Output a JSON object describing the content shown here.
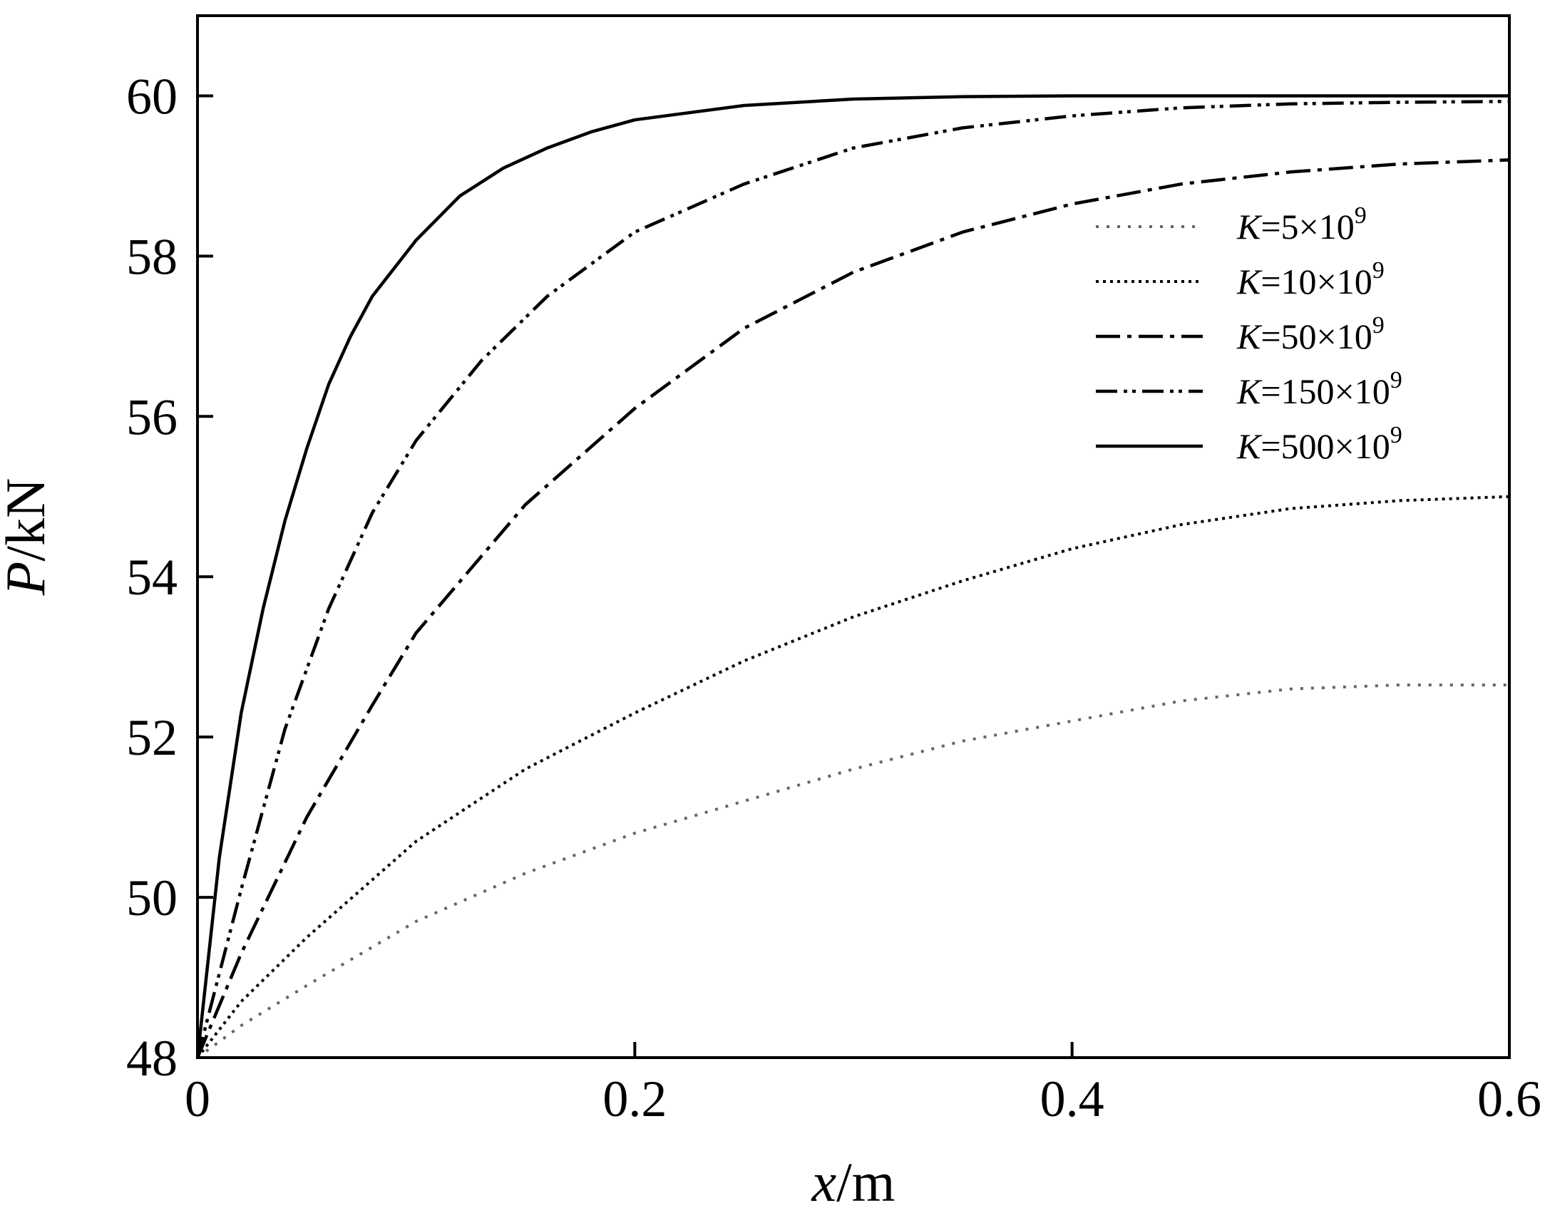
{
  "chart_data": {
    "type": "line",
    "xlabel": {
      "var": "x",
      "unit": "/m"
    },
    "ylabel": {
      "var": "P",
      "unit": "/kN"
    },
    "xlim": [
      0,
      0.6
    ],
    "ylim": [
      48,
      61
    ],
    "xticks": [
      "0",
      "0.2",
      "0.4",
      "0.6"
    ],
    "yticks": [
      "48",
      "50",
      "52",
      "54",
      "56",
      "58",
      "60"
    ],
    "grid": false,
    "legend_position": "upper-right",
    "series": [
      {
        "name": {
          "var": "K",
          "text": "=5×10",
          "exp": "9"
        },
        "style": "dotted-grey",
        "color": "#666666",
        "x": [
          0,
          0.02,
          0.05,
          0.1,
          0.15,
          0.2,
          0.25,
          0.3,
          0.35,
          0.4,
          0.45,
          0.5,
          0.55,
          0.6
        ],
        "y": [
          48.0,
          48.4,
          48.9,
          49.7,
          50.3,
          50.8,
          51.2,
          51.6,
          51.95,
          52.2,
          52.45,
          52.6,
          52.65,
          52.65
        ]
      },
      {
        "name": {
          "var": "K",
          "text": "=10×10",
          "exp": "9"
        },
        "style": "dotted",
        "color": "#000000",
        "x": [
          0,
          0.02,
          0.05,
          0.1,
          0.15,
          0.2,
          0.25,
          0.3,
          0.35,
          0.4,
          0.45,
          0.5,
          0.55,
          0.6
        ],
        "y": [
          48.0,
          48.7,
          49.5,
          50.7,
          51.6,
          52.3,
          52.95,
          53.5,
          53.95,
          54.35,
          54.65,
          54.85,
          54.95,
          55.0
        ]
      },
      {
        "name": {
          "var": "K",
          "text": "=50×10",
          "exp": "9"
        },
        "style": "dash-dot",
        "color": "#000000",
        "x": [
          0,
          0.02,
          0.05,
          0.08,
          0.1,
          0.15,
          0.2,
          0.25,
          0.3,
          0.35,
          0.4,
          0.45,
          0.5,
          0.55,
          0.6
        ],
        "y": [
          48.0,
          49.3,
          51.0,
          52.4,
          53.3,
          54.9,
          56.1,
          57.1,
          57.8,
          58.3,
          58.65,
          58.9,
          59.05,
          59.15,
          59.2
        ]
      },
      {
        "name": {
          "var": "K",
          "text": "=150×10",
          "exp": "9"
        },
        "style": "dash-dot-dot",
        "color": "#000000",
        "x": [
          0,
          0.02,
          0.04,
          0.06,
          0.08,
          0.1,
          0.13,
          0.16,
          0.2,
          0.25,
          0.3,
          0.35,
          0.4,
          0.45,
          0.5,
          0.55,
          0.6
        ],
        "y": [
          48.0,
          50.1,
          52.1,
          53.6,
          54.8,
          55.7,
          56.7,
          57.5,
          58.3,
          58.9,
          59.35,
          59.6,
          59.75,
          59.85,
          59.9,
          59.92,
          59.93
        ]
      },
      {
        "name": {
          "var": "K",
          "text": "=500×10",
          "exp": "9"
        },
        "style": "solid",
        "color": "#000000",
        "x": [
          0,
          0.01,
          0.02,
          0.03,
          0.04,
          0.05,
          0.06,
          0.07,
          0.08,
          0.1,
          0.12,
          0.14,
          0.16,
          0.18,
          0.2,
          0.25,
          0.3,
          0.35,
          0.4,
          0.5,
          0.6
        ],
        "y": [
          48.0,
          50.5,
          52.3,
          53.6,
          54.7,
          55.6,
          56.4,
          57.0,
          57.5,
          58.2,
          58.75,
          59.1,
          59.35,
          59.55,
          59.7,
          59.88,
          59.96,
          59.99,
          60.0,
          60.0,
          60.0
        ]
      }
    ]
  }
}
